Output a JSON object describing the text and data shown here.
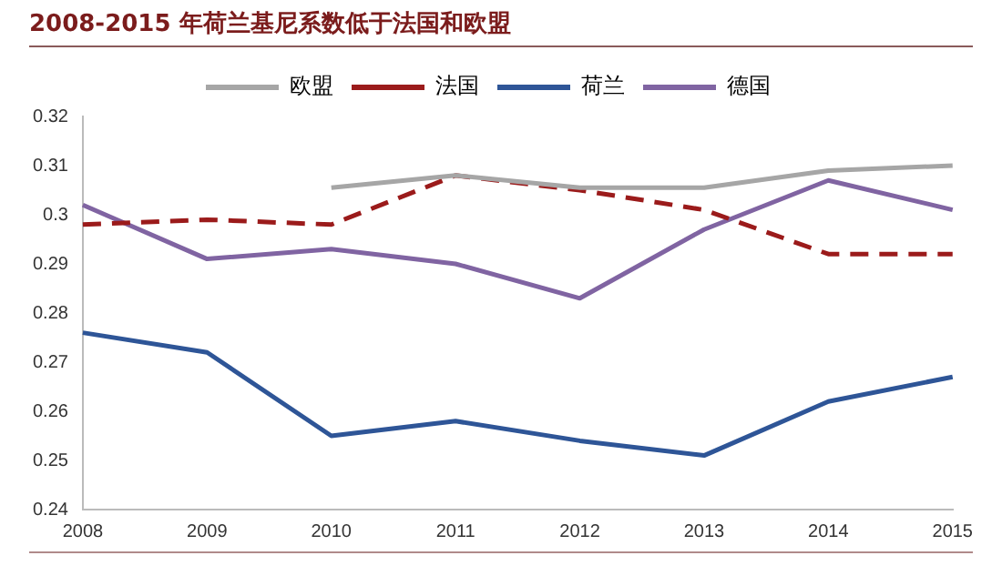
{
  "chart_data": {
    "type": "line",
    "title": "2008-2015 年荷兰基尼系数低于法国和欧盟",
    "categories": [
      "2008",
      "2009",
      "2010",
      "2011",
      "2012",
      "2013",
      "2014",
      "2015"
    ],
    "series": [
      {
        "name": "欧盟",
        "color": "#a6a6a6",
        "line_style": "solid",
        "values": [
          null,
          null,
          0.3055,
          0.308,
          0.3055,
          0.3055,
          0.309,
          0.31
        ]
      },
      {
        "name": "法国",
        "color": "#9b1b1b",
        "line_style": "dashed",
        "values": [
          0.298,
          0.299,
          0.298,
          0.308,
          0.305,
          0.301,
          0.292,
          0.292
        ]
      },
      {
        "name": "荷兰",
        "color": "#2e5597",
        "line_style": "solid",
        "values": [
          0.276,
          0.272,
          0.255,
          0.258,
          0.254,
          0.251,
          0.262,
          0.267
        ]
      },
      {
        "name": "德国",
        "color": "#8064a2",
        "line_style": "solid",
        "values": [
          0.302,
          0.291,
          0.293,
          0.29,
          0.283,
          0.297,
          0.307,
          0.301
        ]
      }
    ],
    "ylim": [
      0.24,
      0.32
    ],
    "yticks": [
      0.24,
      0.25,
      0.26,
      0.27,
      0.28,
      0.29,
      0.3,
      0.31,
      0.32
    ],
    "grid": false,
    "legend": "top",
    "marker": "none"
  }
}
